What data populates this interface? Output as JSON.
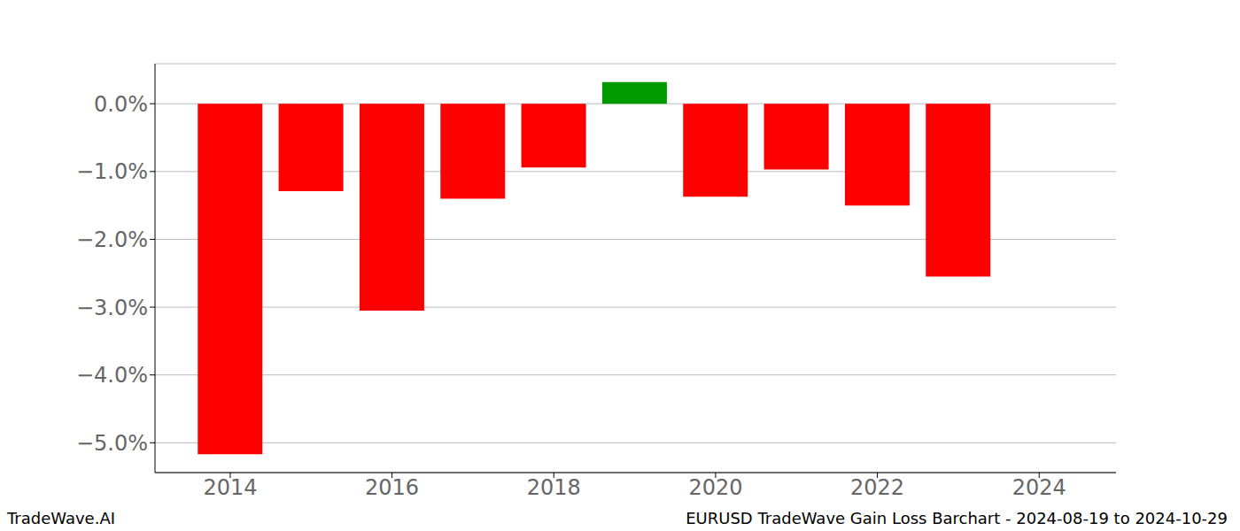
{
  "chart_data": {
    "type": "bar",
    "title": "EURUSD TradeWave Gain Loss Barchart - 2024-08-19 to 2024-10-29",
    "annotations": [
      "TradeWave.AI"
    ],
    "x": [
      2014,
      2015,
      2016,
      2017,
      2018,
      2019,
      2020,
      2021,
      2022,
      2023
    ],
    "values": [
      -5.17,
      -1.29,
      -3.05,
      -1.4,
      -0.94,
      0.32,
      -1.37,
      -0.97,
      -1.5,
      -2.55
    ],
    "colors": [
      "#ff0000",
      "#ff0000",
      "#ff0000",
      "#ff0000",
      "#ff0000",
      "#009900",
      "#ff0000",
      "#ff0000",
      "#ff0000",
      "#ff0000"
    ],
    "xlim": [
      2013.07,
      2024.95
    ],
    "xticks": [
      2014,
      2016,
      2018,
      2020,
      2022,
      2024
    ],
    "ylim": [
      -5.44,
      0.59
    ],
    "yticks": [
      {
        "value": 0,
        "label": "0.0%"
      },
      {
        "value": -1,
        "label": "−1.0%"
      },
      {
        "value": -2,
        "label": "−2.0%"
      },
      {
        "value": -3,
        "label": "−3.0%"
      },
      {
        "value": -4,
        "label": "−4.0%"
      },
      {
        "value": -5,
        "label": "−5.0%"
      }
    ],
    "grid": true
  }
}
